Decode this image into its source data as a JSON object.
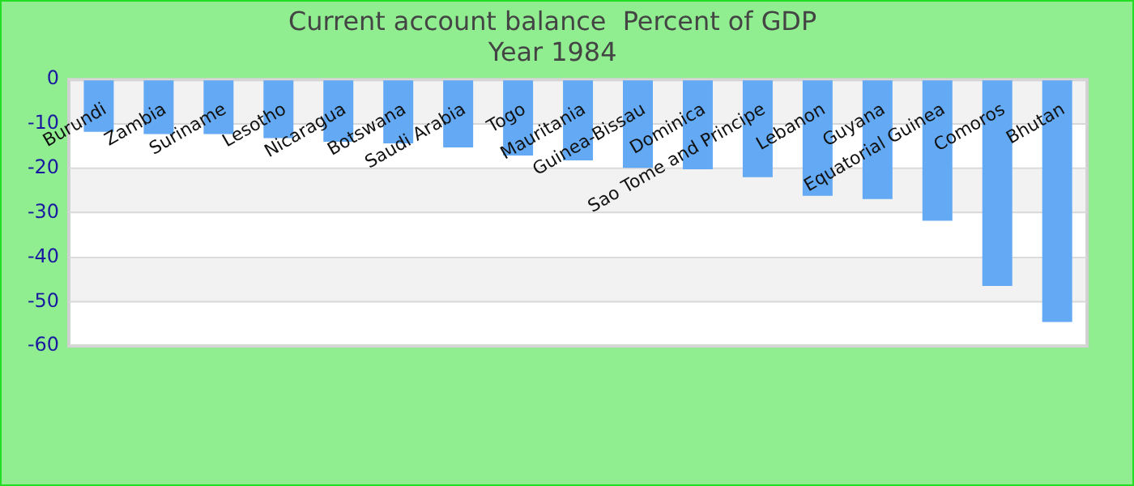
{
  "chart_data": {
    "type": "bar",
    "title": "Current account balance  Percent of GDP\nYear 1984",
    "categories": [
      "Burundi",
      "Zambia",
      "Suriname",
      "Lesotho",
      "Nicaragua",
      "Botswana",
      "Saudi Arabia",
      "Togo",
      "Mauritania",
      "Guinea-Bissau",
      "Dominica",
      "Sao Tome and Principe",
      "Lebanon",
      "Guyana",
      "Equatorial Guinea",
      "Comoros",
      "Bhutan"
    ],
    "values": [
      -11.8,
      -12.3,
      -12.3,
      -13.2,
      -14.0,
      -14.4,
      -15.3,
      -17.1,
      -18.2,
      -19.9,
      -20.2,
      -22.0,
      -26.2,
      -26.9,
      -31.8,
      -46.5,
      -54.6
    ],
    "color": "#63a9f4",
    "ylim": [
      -60,
      0
    ],
    "yticks": [
      -60,
      -50,
      -40,
      -30,
      -20,
      -10,
      0
    ],
    "grid": true,
    "legend": false
  }
}
